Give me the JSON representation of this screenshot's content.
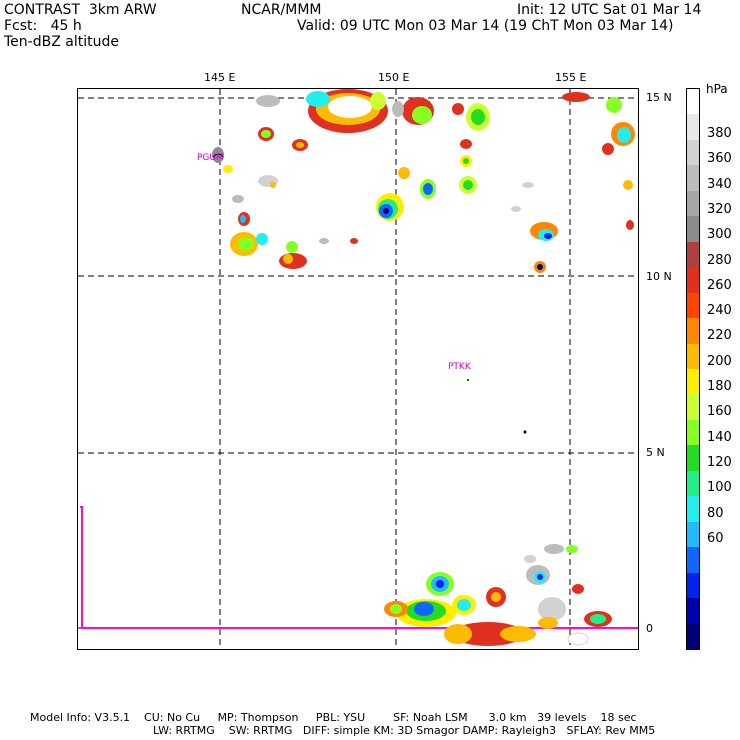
{
  "header": {
    "model": "CONTRAST  3km ARW",
    "org": "NCAR/MMM",
    "init": "Init: 12 UTC Sat 01 Mar 14",
    "fcst": "Fcst:   45 h",
    "valid": "Valid: 09 UTC Mon 03 Mar 14 (19 ChT Mon 03 Mar 14)",
    "field": "Ten-dBZ altitude"
  },
  "axes": {
    "lon_labels": [
      "145 E",
      "150 E",
      "155 E"
    ],
    "lat_labels": [
      "15 N",
      "10 N",
      "5 N",
      "0"
    ]
  },
  "stations": [
    "PGUM",
    "PTKK"
  ],
  "colorbar": {
    "unit": "hPa",
    "labels": [
      "380",
      "360",
      "340",
      "320",
      "300",
      "280",
      "260",
      "240",
      "220",
      "200",
      "180",
      "160",
      "140",
      "120",
      "100",
      "80",
      "60"
    ],
    "colors": [
      "#ffffff",
      "#e8e8e8",
      "#d2d2d2",
      "#bcbcbc",
      "#a6a6a6",
      "#8c8c8c",
      "#b04040",
      "#e03020",
      "#ff4400",
      "#ff8800",
      "#ffbb00",
      "#ffee00",
      "#ccff33",
      "#88ff22",
      "#22dd22",
      "#22ee88",
      "#22eeee",
      "#22bbff",
      "#1166ff",
      "#0022ee",
      "#0000aa",
      "#000077"
    ]
  },
  "footer": {
    "line1": "Model Info: V3.5.1    CU: No Cu     MP: Thompson     PBL: YSU        SF: Noah LSM      3.0 km   39 levels    18 sec",
    "line2": "LW: RRTMG    SW: RRTMG   DIFF: simple KM: 3D Smagor DAMP: Rayleigh3   SFLAY: Rev MM5"
  }
}
